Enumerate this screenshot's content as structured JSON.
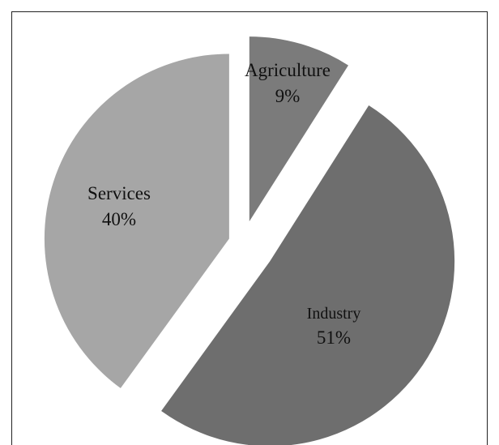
{
  "chart_data": {
    "type": "pie",
    "title": "",
    "categories": [
      "Agriculture",
      "Industry",
      "Services"
    ],
    "values": [
      9,
      51,
      40
    ],
    "labels": [
      {
        "name": "Agriculture",
        "percent": "9%"
      },
      {
        "name": "Industry",
        "percent": "51%"
      },
      {
        "name": "Services",
        "percent": "40%"
      }
    ],
    "exploded": true,
    "legend": "none",
    "colors": {
      "Agriculture": "#7b7b7b",
      "Industry": "#6e6e6e",
      "Services": "#a6a6a6",
      "border": "#222222",
      "background": "#ffffff"
    }
  }
}
